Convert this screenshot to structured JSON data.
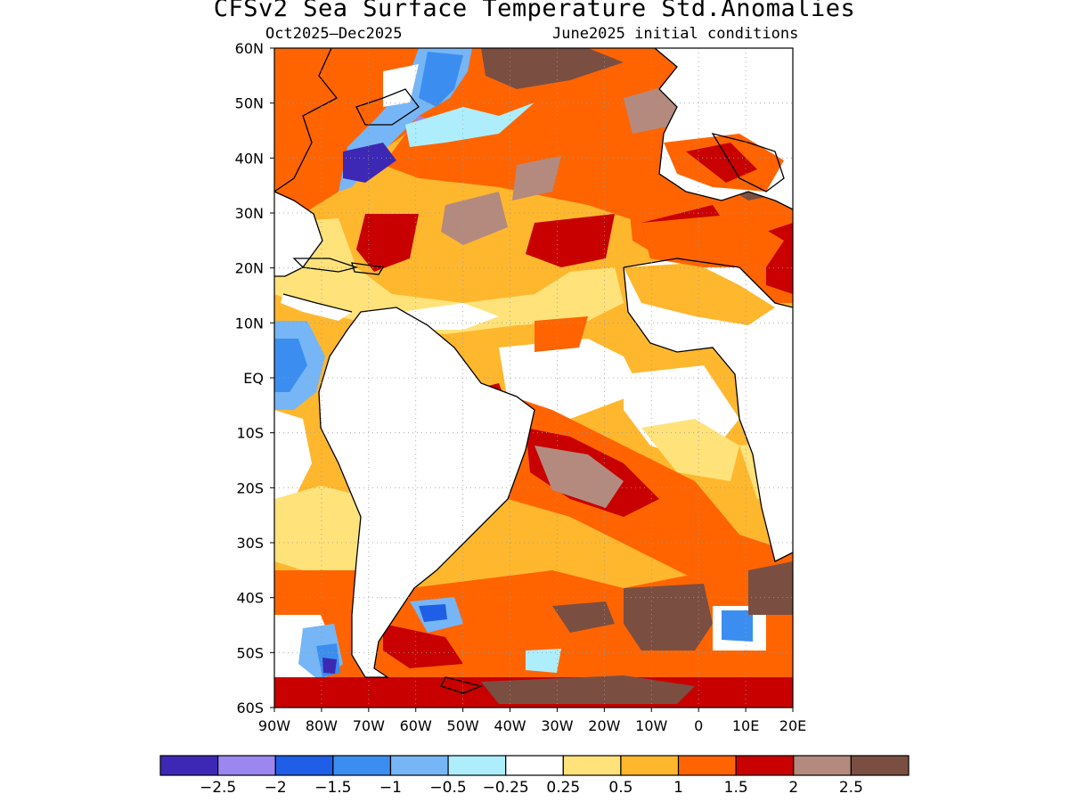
{
  "title": "CFSv2 Sea Surface Temperature Std.Anomalies",
  "subtitle_left": "Oct2025–Dec2025",
  "subtitle_right": "June2025 initial conditions",
  "map": {
    "lon_range": [
      -90,
      20
    ],
    "lat_range": [
      -60,
      60
    ],
    "lat_ticks": [
      {
        "value": 60,
        "label": "60N"
      },
      {
        "value": 50,
        "label": "50N"
      },
      {
        "value": 40,
        "label": "40N"
      },
      {
        "value": 30,
        "label": "30N"
      },
      {
        "value": 20,
        "label": "20N"
      },
      {
        "value": 10,
        "label": "10N"
      },
      {
        "value": 0,
        "label": "EQ"
      },
      {
        "value": -10,
        "label": "10S"
      },
      {
        "value": -20,
        "label": "20S"
      },
      {
        "value": -30,
        "label": "30S"
      },
      {
        "value": -40,
        "label": "40S"
      },
      {
        "value": -50,
        "label": "50S"
      },
      {
        "value": -60,
        "label": "60S"
      }
    ],
    "lon_ticks": [
      {
        "value": -90,
        "label": "90W"
      },
      {
        "value": -80,
        "label": "80W"
      },
      {
        "value": -70,
        "label": "70W"
      },
      {
        "value": -60,
        "label": "60W"
      },
      {
        "value": -50,
        "label": "50W"
      },
      {
        "value": -40,
        "label": "40W"
      },
      {
        "value": -30,
        "label": "30W"
      },
      {
        "value": -20,
        "label": "20W"
      },
      {
        "value": -10,
        "label": "10W"
      },
      {
        "value": 0,
        "label": "0"
      },
      {
        "value": 10,
        "label": "10E"
      },
      {
        "value": 20,
        "label": "20E"
      }
    ],
    "grid": "dotted"
  },
  "colorbar": {
    "colors": [
      "#3c28b4",
      "#9c86f0",
      "#1f5ee6",
      "#3b8ef0",
      "#76b6f6",
      "#aeeefc",
      "#ffffff",
      "#ffe27a",
      "#ffb72e",
      "#ff6400",
      "#c80000",
      "#b48a7e",
      "#7b4e42"
    ],
    "labels": [
      "−2.5",
      "−2",
      "−1.5",
      "−1",
      "−0.5",
      "−0.25",
      "0.25",
      "0.5",
      "1",
      "1.5",
      "2",
      "2.5"
    ]
  }
}
